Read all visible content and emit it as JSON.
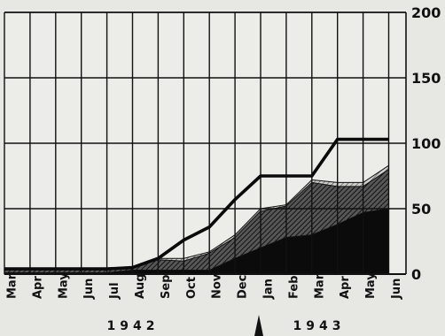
{
  "chart_data": {
    "type": "area",
    "categories": [
      "Mar",
      "Apr",
      "May",
      "Jun",
      "Jul",
      "Aug",
      "Sep",
      "Oct",
      "Nov",
      "Dec",
      "Jan",
      "Feb",
      "Mar",
      "Apr",
      "May",
      "Jun"
    ],
    "year_labels": [
      "1942",
      "1943"
    ],
    "ylim": [
      0,
      200
    ],
    "yticks": [
      "0",
      "50",
      "100",
      "150",
      "200"
    ],
    "grid": true,
    "y_axis_side": "right",
    "series": [
      {
        "style": "solid-black",
        "values": [
          1,
          1,
          1,
          1,
          1,
          3,
          3,
          3,
          3,
          12,
          20,
          28,
          30,
          38,
          47,
          50
        ]
      },
      {
        "style": "dense-hatch",
        "values": [
          4,
          4,
          4,
          4,
          4,
          5,
          11,
          10,
          16,
          28,
          48,
          52,
          70,
          67,
          67,
          80
        ]
      },
      {
        "style": "light-hatch",
        "values": [
          4,
          4,
          4,
          4,
          4,
          5,
          12,
          12,
          17,
          30,
          50,
          53,
          72,
          70,
          70,
          83
        ]
      },
      {
        "style": "heavy-line",
        "values": [
          4,
          4,
          4,
          4,
          4,
          5,
          12,
          26,
          36,
          57,
          75,
          75,
          75,
          103,
          103,
          103
        ]
      }
    ],
    "annotation": "arrow-between-dec-and-jan"
  }
}
